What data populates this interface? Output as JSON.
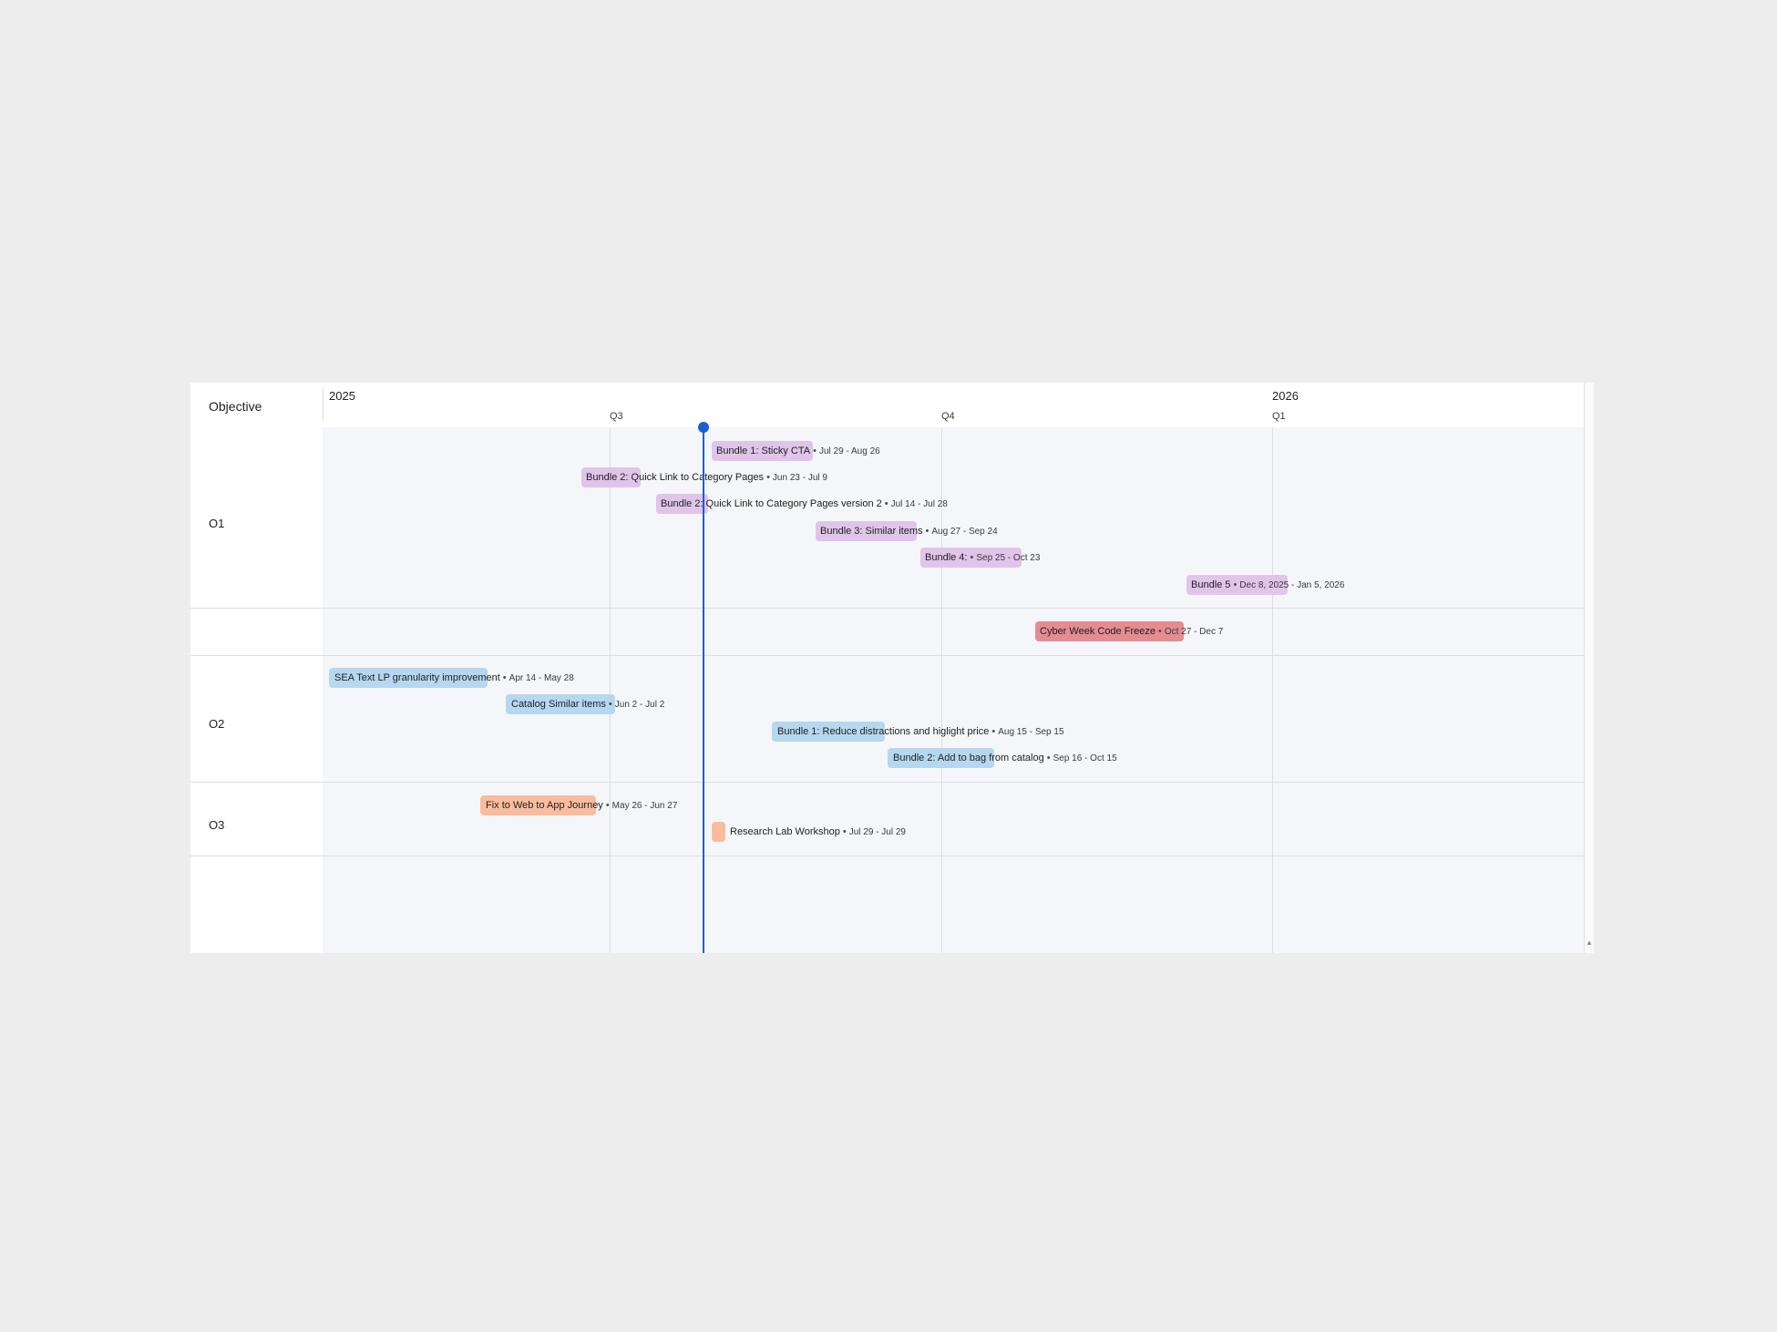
{
  "header": {
    "title": "Objective",
    "years": [
      "2025",
      "2026"
    ],
    "quarters": [
      "Q3",
      "Q4",
      "Q1"
    ]
  },
  "rows": [
    {
      "label": "O1"
    },
    {
      "label": ""
    },
    {
      "label": "O2"
    },
    {
      "label": "O3"
    },
    {
      "label": ""
    }
  ],
  "bullet": "•",
  "items": [
    {
      "title": "Bundle 1: Sticky CTA",
      "dates": "Jul 29 - Aug 26",
      "color": "#e0c4ea"
    },
    {
      "title": "Bundle 2: Quick Link to Category Pages",
      "dates": "Jun 23 - Jul 9",
      "color": "#e0c4ea"
    },
    {
      "title": "Bundle 2: Quick Link to Category Pages version 2",
      "dates": "Jul 14 - Jul 28",
      "color": "#e0c4ea"
    },
    {
      "title": "Bundle 3: Similar items",
      "dates": "Aug 27 - Sep 24",
      "color": "#e0c4ea"
    },
    {
      "title": "Bundle 4:",
      "dates": "Sep 25 - Oct 23",
      "color": "#e0c4ea"
    },
    {
      "title": "Bundle 5",
      "dates": "Dec 8, 2025 - Jan 5, 2026",
      "color": "#e0c4ea"
    },
    {
      "title": "Cyber Week Code Freeze",
      "dates": "Oct 27 - Dec 7",
      "color": "#e48c8f"
    },
    {
      "title": "SEA Text LP granularity improvement",
      "dates": "Apr 14 - May 28",
      "color": "#b6d7f0"
    },
    {
      "title": "Catalog Similar items",
      "dates": "Jun 2 - Jul 2",
      "color": "#b6d7f0"
    },
    {
      "title": "Bundle 1: Reduce distractions and higlight price",
      "dates": "Aug 15 - Sep 15",
      "color": "#b6d7f0"
    },
    {
      "title": "Bundle 2: Add to bag from catalog",
      "dates": "Sep 16 - Oct 15",
      "color": "#b6d7f0"
    },
    {
      "title": "Fix to Web to App Journey",
      "dates": "May 26 - Jun 27",
      "color": "#f9bd9d"
    },
    {
      "title": "Research Lab Workshop",
      "dates": "Jul 29 - Jul 29",
      "color": "#f9bd9d"
    }
  ]
}
